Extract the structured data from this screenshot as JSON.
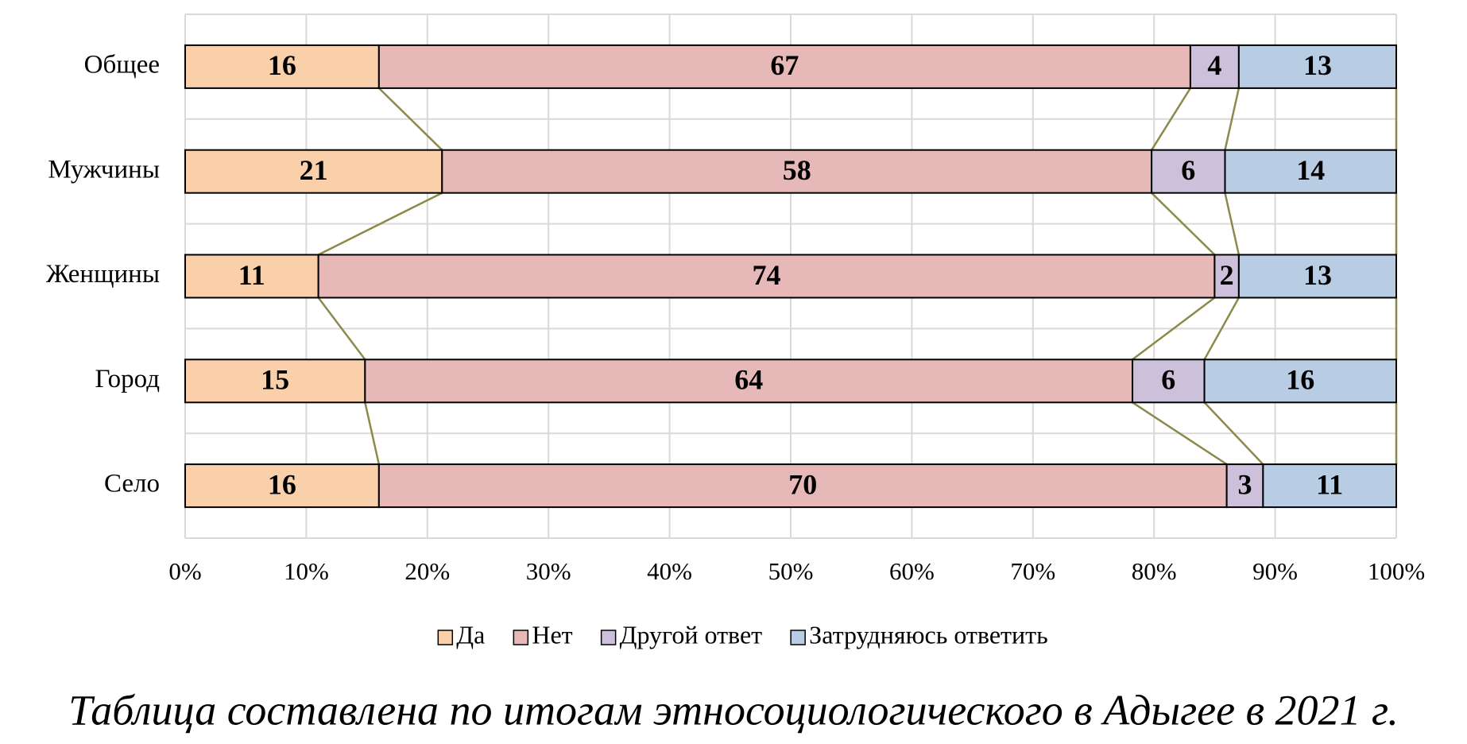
{
  "chart_data": {
    "type": "bar",
    "orientation": "horizontal",
    "stacked": "percent",
    "categories": [
      "Общее",
      "Мужчины",
      "Женщины",
      "Город",
      "Село"
    ],
    "series": [
      {
        "name": "Да",
        "color": "#fad0aa",
        "values": [
          16,
          21,
          11,
          15,
          16
        ]
      },
      {
        "name": "Нет",
        "color": "#e6b8b7",
        "values": [
          67,
          58,
          74,
          64,
          70
        ]
      },
      {
        "name": "Другой ответ",
        "color": "#ccc0da",
        "values": [
          4,
          6,
          2,
          6,
          3
        ]
      },
      {
        "name": "Затрудняюсь ответить",
        "color": "#b8cce4",
        "values": [
          13,
          14,
          13,
          16,
          11
        ]
      }
    ],
    "xlim": [
      0,
      100
    ],
    "xticks": [
      {
        "value": 0,
        "label": "0%"
      },
      {
        "value": 10,
        "label": "10%"
      },
      {
        "value": 20,
        "label": "20%"
      },
      {
        "value": 30,
        "label": "30%"
      },
      {
        "value": 40,
        "label": "40%"
      },
      {
        "value": 50,
        "label": "50%"
      },
      {
        "value": 60,
        "label": "60%"
      },
      {
        "value": 70,
        "label": "70%"
      },
      {
        "value": 80,
        "label": "80%"
      },
      {
        "value": 90,
        "label": "90%"
      },
      {
        "value": 100,
        "label": "100%"
      }
    ],
    "grid": true,
    "legend": "bottom",
    "series_line_color": "#8c8a4a",
    "caption": "Таблица составлена по итогам этносоциологического в Адыгее в 2021 г."
  }
}
